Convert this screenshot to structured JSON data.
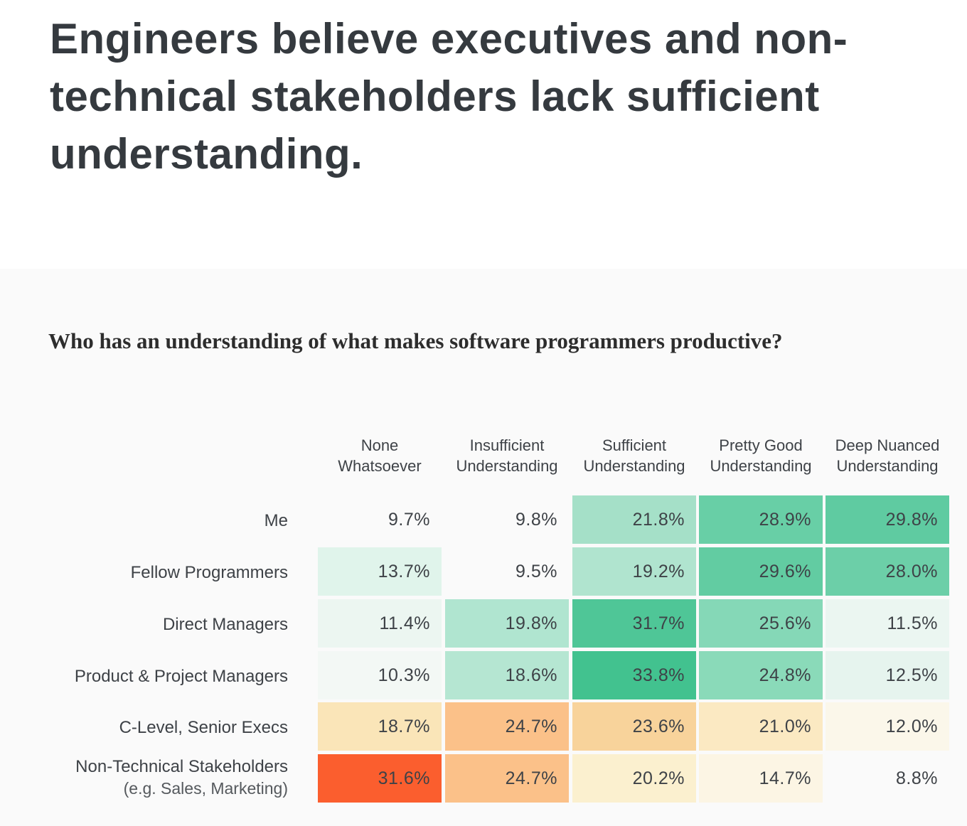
{
  "title": "Engineers believe executives and non-technical stakeholders lack sufficient understanding.",
  "chart_data": {
    "type": "heatmap",
    "title": "Who has an understanding of what makes software programmers productive?",
    "columns": [
      [
        "None",
        "Whatsoever"
      ],
      [
        "Insufficient",
        "Understanding"
      ],
      [
        "Sufficient",
        "Understanding"
      ],
      [
        "Pretty Good",
        "Understanding"
      ],
      [
        "Deep Nuanced",
        "Understanding"
      ]
    ],
    "rows": [
      {
        "label": "Me",
        "sublabel": "",
        "values": [
          9.7,
          9.8,
          21.8,
          28.9,
          29.8
        ],
        "colors": [
          "#fafafa",
          "#fafafa",
          "#a5e0c8",
          "#68cfa6",
          "#5fcba1"
        ]
      },
      {
        "label": "Fellow Programmers",
        "sublabel": "",
        "values": [
          13.7,
          9.5,
          19.2,
          29.6,
          28.0
        ],
        "colors": [
          "#e0f4eb",
          "#fafafa",
          "#b0e4cf",
          "#62cca2",
          "#6ccfa8"
        ]
      },
      {
        "label": "Direct Managers",
        "sublabel": "",
        "values": [
          11.4,
          19.8,
          31.7,
          25.6,
          11.5
        ],
        "colors": [
          "#ecf6f1",
          "#b0e5d0",
          "#4fc697",
          "#85d8b7",
          "#ebf6f1"
        ]
      },
      {
        "label": "Product & Project Managers",
        "sublabel": "",
        "values": [
          10.3,
          18.6,
          33.8,
          24.8,
          12.5
        ],
        "colors": [
          "#f3f8f5",
          "#b5e6d2",
          "#42c28f",
          "#8adab9",
          "#e6f4ee"
        ]
      },
      {
        "label": "C-Level, Senior Execs",
        "sublabel": "",
        "values": [
          18.7,
          24.7,
          23.6,
          21.0,
          12.0
        ],
        "colors": [
          "#fae5b8",
          "#fbc189",
          "#f8d39b",
          "#fbe9c2",
          "#fbf7ea"
        ]
      },
      {
        "label": "Non-Technical Stakeholders",
        "sublabel": "(e.g. Sales, Marketing)",
        "values": [
          31.6,
          24.7,
          20.2,
          14.7,
          8.8
        ],
        "colors": [
          "#fb5e2e",
          "#fbc189",
          "#fbf0cf",
          "#fcf5e4",
          "#fafafa"
        ]
      }
    ],
    "unit": "%"
  }
}
